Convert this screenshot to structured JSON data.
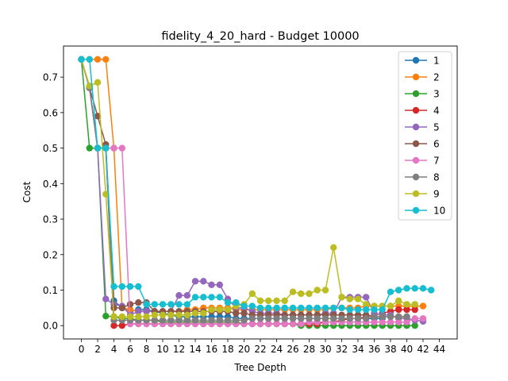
{
  "chart_data": {
    "type": "line",
    "title": "fidelity_4_20_hard - Budget  10000",
    "xlabel": "Tree Depth",
    "ylabel": "Cost",
    "xlim": [
      -2.2,
      46.2
    ],
    "ylim": [
      -0.0375,
      0.7875
    ],
    "xticks": [
      0,
      2,
      4,
      6,
      8,
      10,
      12,
      14,
      16,
      18,
      20,
      22,
      24,
      26,
      28,
      30,
      32,
      34,
      36,
      38,
      40,
      42,
      44
    ],
    "yticks": [
      0.0,
      0.1,
      0.2,
      0.3,
      0.4,
      0.5,
      0.6,
      0.7
    ],
    "ytick_labels": [
      "0.0",
      "0.1",
      "0.2",
      "0.3",
      "0.4",
      "0.5",
      "0.6",
      "0.7"
    ],
    "grid": false,
    "legend_position": "top-right",
    "series": [
      {
        "name": "1",
        "color": "#1f77b4",
        "values": [
          0.75,
          0.67,
          0.5,
          0.5,
          0.07,
          0.05,
          0.04,
          0.045,
          0.045,
          0.04,
          0.035,
          0.03,
          0.025,
          0.025,
          0.025,
          0.025,
          0.025,
          0.025,
          0.025,
          0.02,
          0.02,
          0.02,
          0.02,
          0.02,
          0.02,
          0.02,
          0.02,
          0.02,
          0.02,
          0.02,
          0.02,
          0.02,
          0.02,
          0.02,
          0.02,
          0.02,
          0.02,
          0.02
        ]
      },
      {
        "name": "2",
        "color": "#ff7f0e",
        "values": [
          0.75,
          0.75,
          0.75,
          0.75,
          0.5,
          0.05,
          0.045,
          0.04,
          0.04,
          0.04,
          0.04,
          0.04,
          0.04,
          0.045,
          0.045,
          0.05,
          0.05,
          0.05,
          0.05,
          0.045,
          0.045,
          0.045,
          0.045,
          0.045,
          0.045,
          0.045,
          0.045,
          0.045,
          0.045,
          0.045,
          0.045,
          0.05,
          0.05,
          0.05,
          0.05,
          0.055,
          0.055,
          0.055,
          0.055,
          0.055,
          0.055,
          0.055,
          0.055
        ]
      },
      {
        "name": "3",
        "color": "#2ca02c",
        "values": [
          0.75,
          0.5,
          0.5,
          0.027,
          0.025,
          0.02,
          0.02,
          0.015,
          0.015,
          0.015,
          0.01,
          0.01,
          0.01,
          0.01,
          0.01,
          0.01,
          0.01,
          0.01,
          0.01,
          0.01,
          0.005,
          0.005,
          0.005,
          0.005,
          0.005,
          0.005,
          0.005,
          0.0,
          0.0,
          0.0,
          0.0,
          0.0,
          0.0,
          0.0,
          0.0,
          0.0,
          0.0,
          0.0,
          0.0,
          0.0,
          0.0,
          0.0
        ]
      },
      {
        "name": "4",
        "color": "#d62728",
        "values": [
          0.75,
          0.67,
          0.5,
          0.5,
          0.0,
          0.0,
          0.005,
          0.005,
          0.005,
          0.005,
          0.005,
          0.005,
          0.005,
          0.005,
          0.005,
          0.005,
          0.005,
          0.005,
          0.005,
          0.005,
          0.005,
          0.005,
          0.005,
          0.005,
          0.005,
          0.005,
          0.005,
          0.005,
          0.005,
          0.005,
          0.01,
          0.01,
          0.015,
          0.02,
          0.02,
          0.025,
          0.03,
          0.035,
          0.04,
          0.045,
          0.045,
          0.045
        ]
      },
      {
        "name": "5",
        "color": "#9467bd",
        "values": [
          0.75,
          0.67,
          0.5,
          0.075,
          0.06,
          0.055,
          0.03,
          0.04,
          0.04,
          0.04,
          0.04,
          0.04,
          0.085,
          0.085,
          0.125,
          0.125,
          0.115,
          0.115,
          0.075,
          0.05,
          0.05,
          0.04,
          0.035,
          0.035,
          0.035,
          0.03,
          0.03,
          0.03,
          0.03,
          0.03,
          0.035,
          0.035,
          0.08,
          0.08,
          0.08,
          0.08,
          0.035,
          0.03,
          0.03,
          0.02,
          0.02,
          0.015,
          0.012
        ]
      },
      {
        "name": "6",
        "color": "#8c564b",
        "values": [
          0.75,
          0.67,
          0.59,
          0.51,
          0.05,
          0.05,
          0.06,
          0.065,
          0.065,
          0.04,
          0.04,
          0.04,
          0.04,
          0.04,
          0.04,
          0.04,
          0.04,
          0.04,
          0.04,
          0.035,
          0.035,
          0.03,
          0.03,
          0.03,
          0.03,
          0.03,
          0.03,
          0.03,
          0.03,
          0.03,
          0.03,
          0.03,
          0.03,
          0.03,
          0.03,
          0.03,
          0.025,
          0.025,
          0.025,
          0.025,
          0.025
        ]
      },
      {
        "name": "7",
        "color": "#e377c2",
        "values": [
          0.75,
          0.67,
          0.5,
          0.5,
          0.5,
          0.5,
          0.005,
          0.005,
          0.005,
          0.005,
          0.005,
          0.005,
          0.005,
          0.005,
          0.005,
          0.005,
          0.005,
          0.005,
          0.005,
          0.005,
          0.005,
          0.005,
          0.005,
          0.005,
          0.005,
          0.005,
          0.005,
          0.005,
          0.01,
          0.01,
          0.01,
          0.01,
          0.01,
          0.01,
          0.01,
          0.01,
          0.01,
          0.01,
          0.01,
          0.01,
          0.01,
          0.02,
          0.02
        ]
      },
      {
        "name": "8",
        "color": "#7f7f7f",
        "values": [
          0.75,
          0.67,
          0.5,
          0.5,
          0.015,
          0.015,
          0.015,
          0.015,
          0.015,
          0.015,
          0.015,
          0.015,
          0.015,
          0.015,
          0.015,
          0.015,
          0.015,
          0.015,
          0.015,
          0.015,
          0.015,
          0.02,
          0.02,
          0.02,
          0.02,
          0.02,
          0.02,
          0.02,
          0.02,
          0.02,
          0.02,
          0.02,
          0.02,
          0.02,
          0.02,
          0.02,
          0.025,
          0.025,
          0.025,
          0.025,
          0.025
        ]
      },
      {
        "name": "9",
        "color": "#bcbd22",
        "values": [
          0.75,
          0.675,
          0.685,
          0.37,
          0.025,
          0.025,
          0.025,
          0.025,
          0.025,
          0.03,
          0.03,
          0.03,
          0.03,
          0.03,
          0.035,
          0.035,
          0.045,
          0.045,
          0.045,
          0.055,
          0.06,
          0.09,
          0.07,
          0.07,
          0.07,
          0.07,
          0.095,
          0.09,
          0.09,
          0.1,
          0.1,
          0.22,
          0.08,
          0.075,
          0.075,
          0.06,
          0.055,
          0.055,
          0.055,
          0.07,
          0.06,
          0.06
        ]
      },
      {
        "name": "10",
        "color": "#17becf",
        "values": [
          0.75,
          0.75,
          0.5,
          0.5,
          0.11,
          0.11,
          0.11,
          0.11,
          0.06,
          0.06,
          0.06,
          0.06,
          0.06,
          0.06,
          0.08,
          0.08,
          0.08,
          0.08,
          0.065,
          0.065,
          0.055,
          0.055,
          0.05,
          0.05,
          0.05,
          0.05,
          0.05,
          0.05,
          0.05,
          0.05,
          0.05,
          0.05,
          0.05,
          0.045,
          0.045,
          0.045,
          0.045,
          0.045,
          0.095,
          0.1,
          0.105,
          0.105,
          0.105,
          0.1
        ]
      }
    ]
  }
}
